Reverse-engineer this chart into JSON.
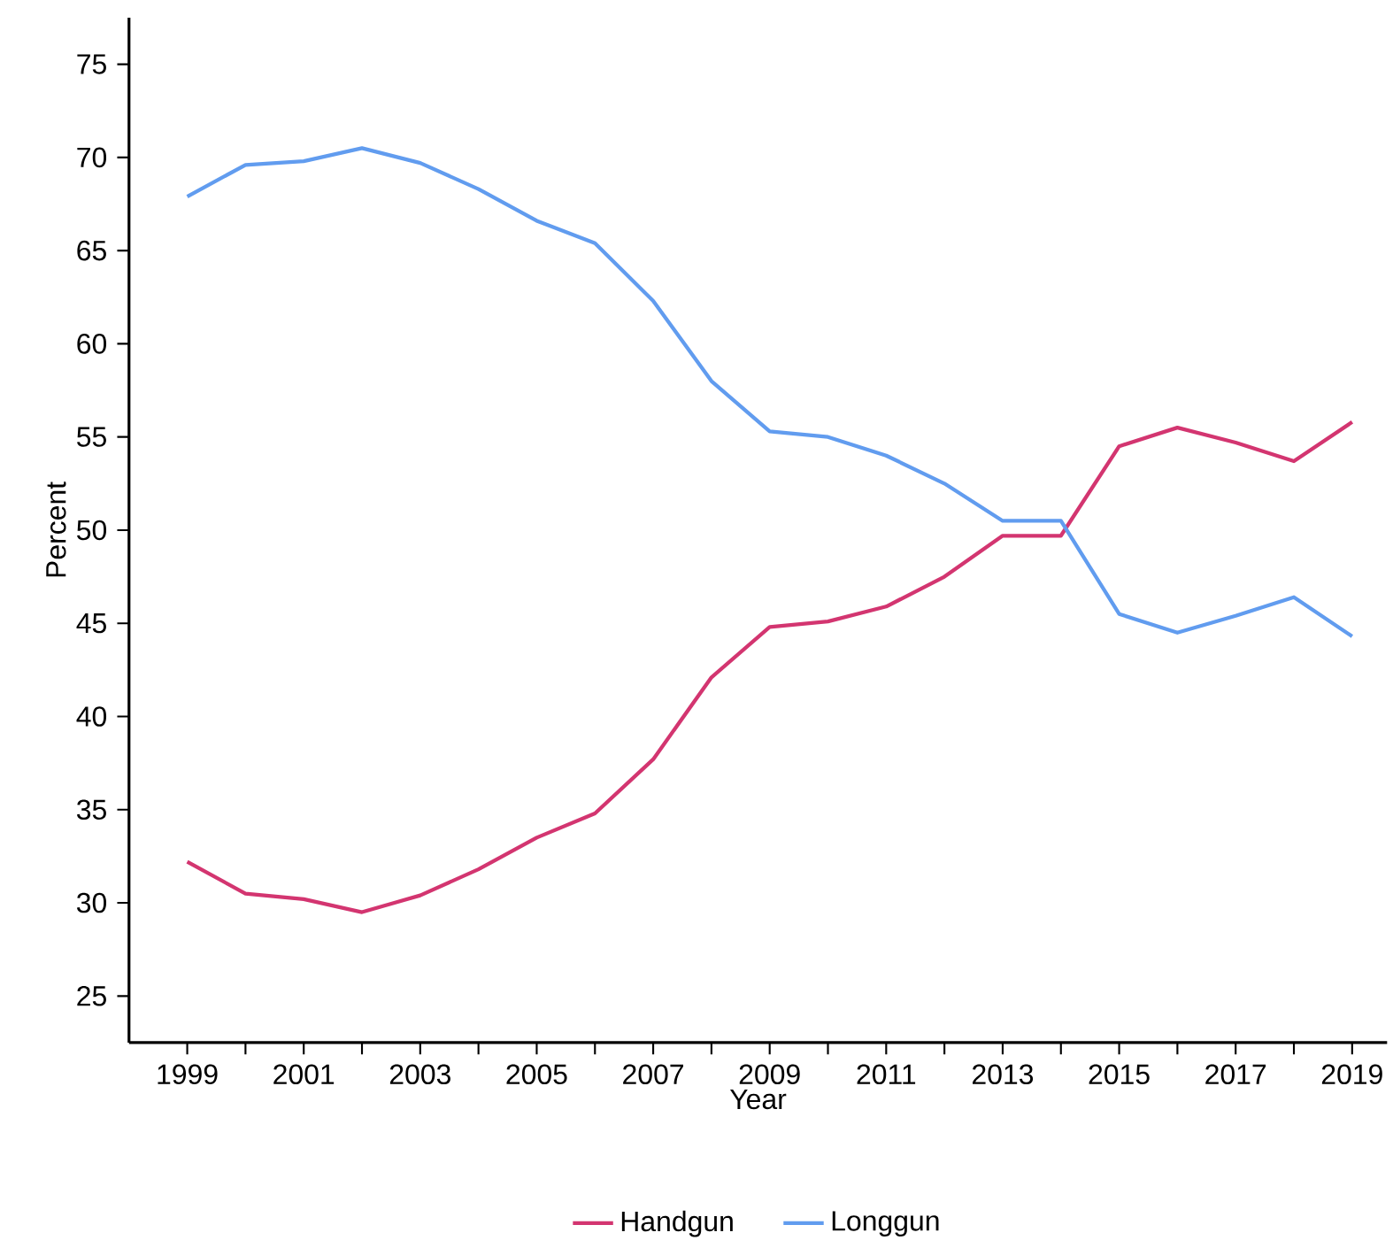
{
  "chart_data": {
    "type": "line",
    "xlabel": "Year",
    "ylabel": "Percent",
    "x": [
      1999,
      2000,
      2001,
      2002,
      2003,
      2004,
      2005,
      2006,
      2007,
      2008,
      2009,
      2010,
      2011,
      2012,
      2013,
      2014,
      2015,
      2016,
      2017,
      2018,
      2019
    ],
    "series": [
      {
        "name": "Handgun",
        "color": "#d33570",
        "values": [
          32.2,
          30.5,
          30.2,
          29.5,
          30.4,
          31.8,
          33.5,
          34.8,
          37.7,
          42.1,
          44.8,
          45.1,
          45.9,
          47.5,
          49.7,
          49.7,
          54.5,
          55.5,
          54.7,
          53.7,
          55.8
        ]
      },
      {
        "name": "Longgun",
        "color": "#619cef",
        "values": [
          67.9,
          69.6,
          69.8,
          70.5,
          69.7,
          68.3,
          66.6,
          65.4,
          62.3,
          58.0,
          55.3,
          55.0,
          54.0,
          52.5,
          50.5,
          50.5,
          45.5,
          44.5,
          45.4,
          46.4,
          44.3
        ]
      }
    ],
    "xlim": [
      1998,
      2019.6
    ],
    "ylim": [
      22.5,
      77.5
    ],
    "xticks": [
      1999,
      {
        "value": 2000,
        "label": null
      },
      2001,
      {
        "value": 2002,
        "label": null
      },
      2003,
      {
        "value": 2004,
        "label": null
      },
      2005,
      {
        "value": 2006,
        "label": null
      },
      2007,
      {
        "value": 2008,
        "label": null
      },
      2009,
      {
        "value": 2010,
        "label": null
      },
      2011,
      {
        "value": 2012,
        "label": null
      },
      2013,
      {
        "value": 2014,
        "label": null
      },
      2015,
      {
        "value": 2016,
        "label": null
      },
      2017,
      {
        "value": 2018,
        "label": null
      },
      2019
    ],
    "yticks": [
      25,
      30,
      35,
      40,
      45,
      50,
      55,
      60,
      65,
      70,
      75
    ],
    "grid": false,
    "legend": "bottom",
    "marker": "none",
    "line_style": "solid"
  }
}
